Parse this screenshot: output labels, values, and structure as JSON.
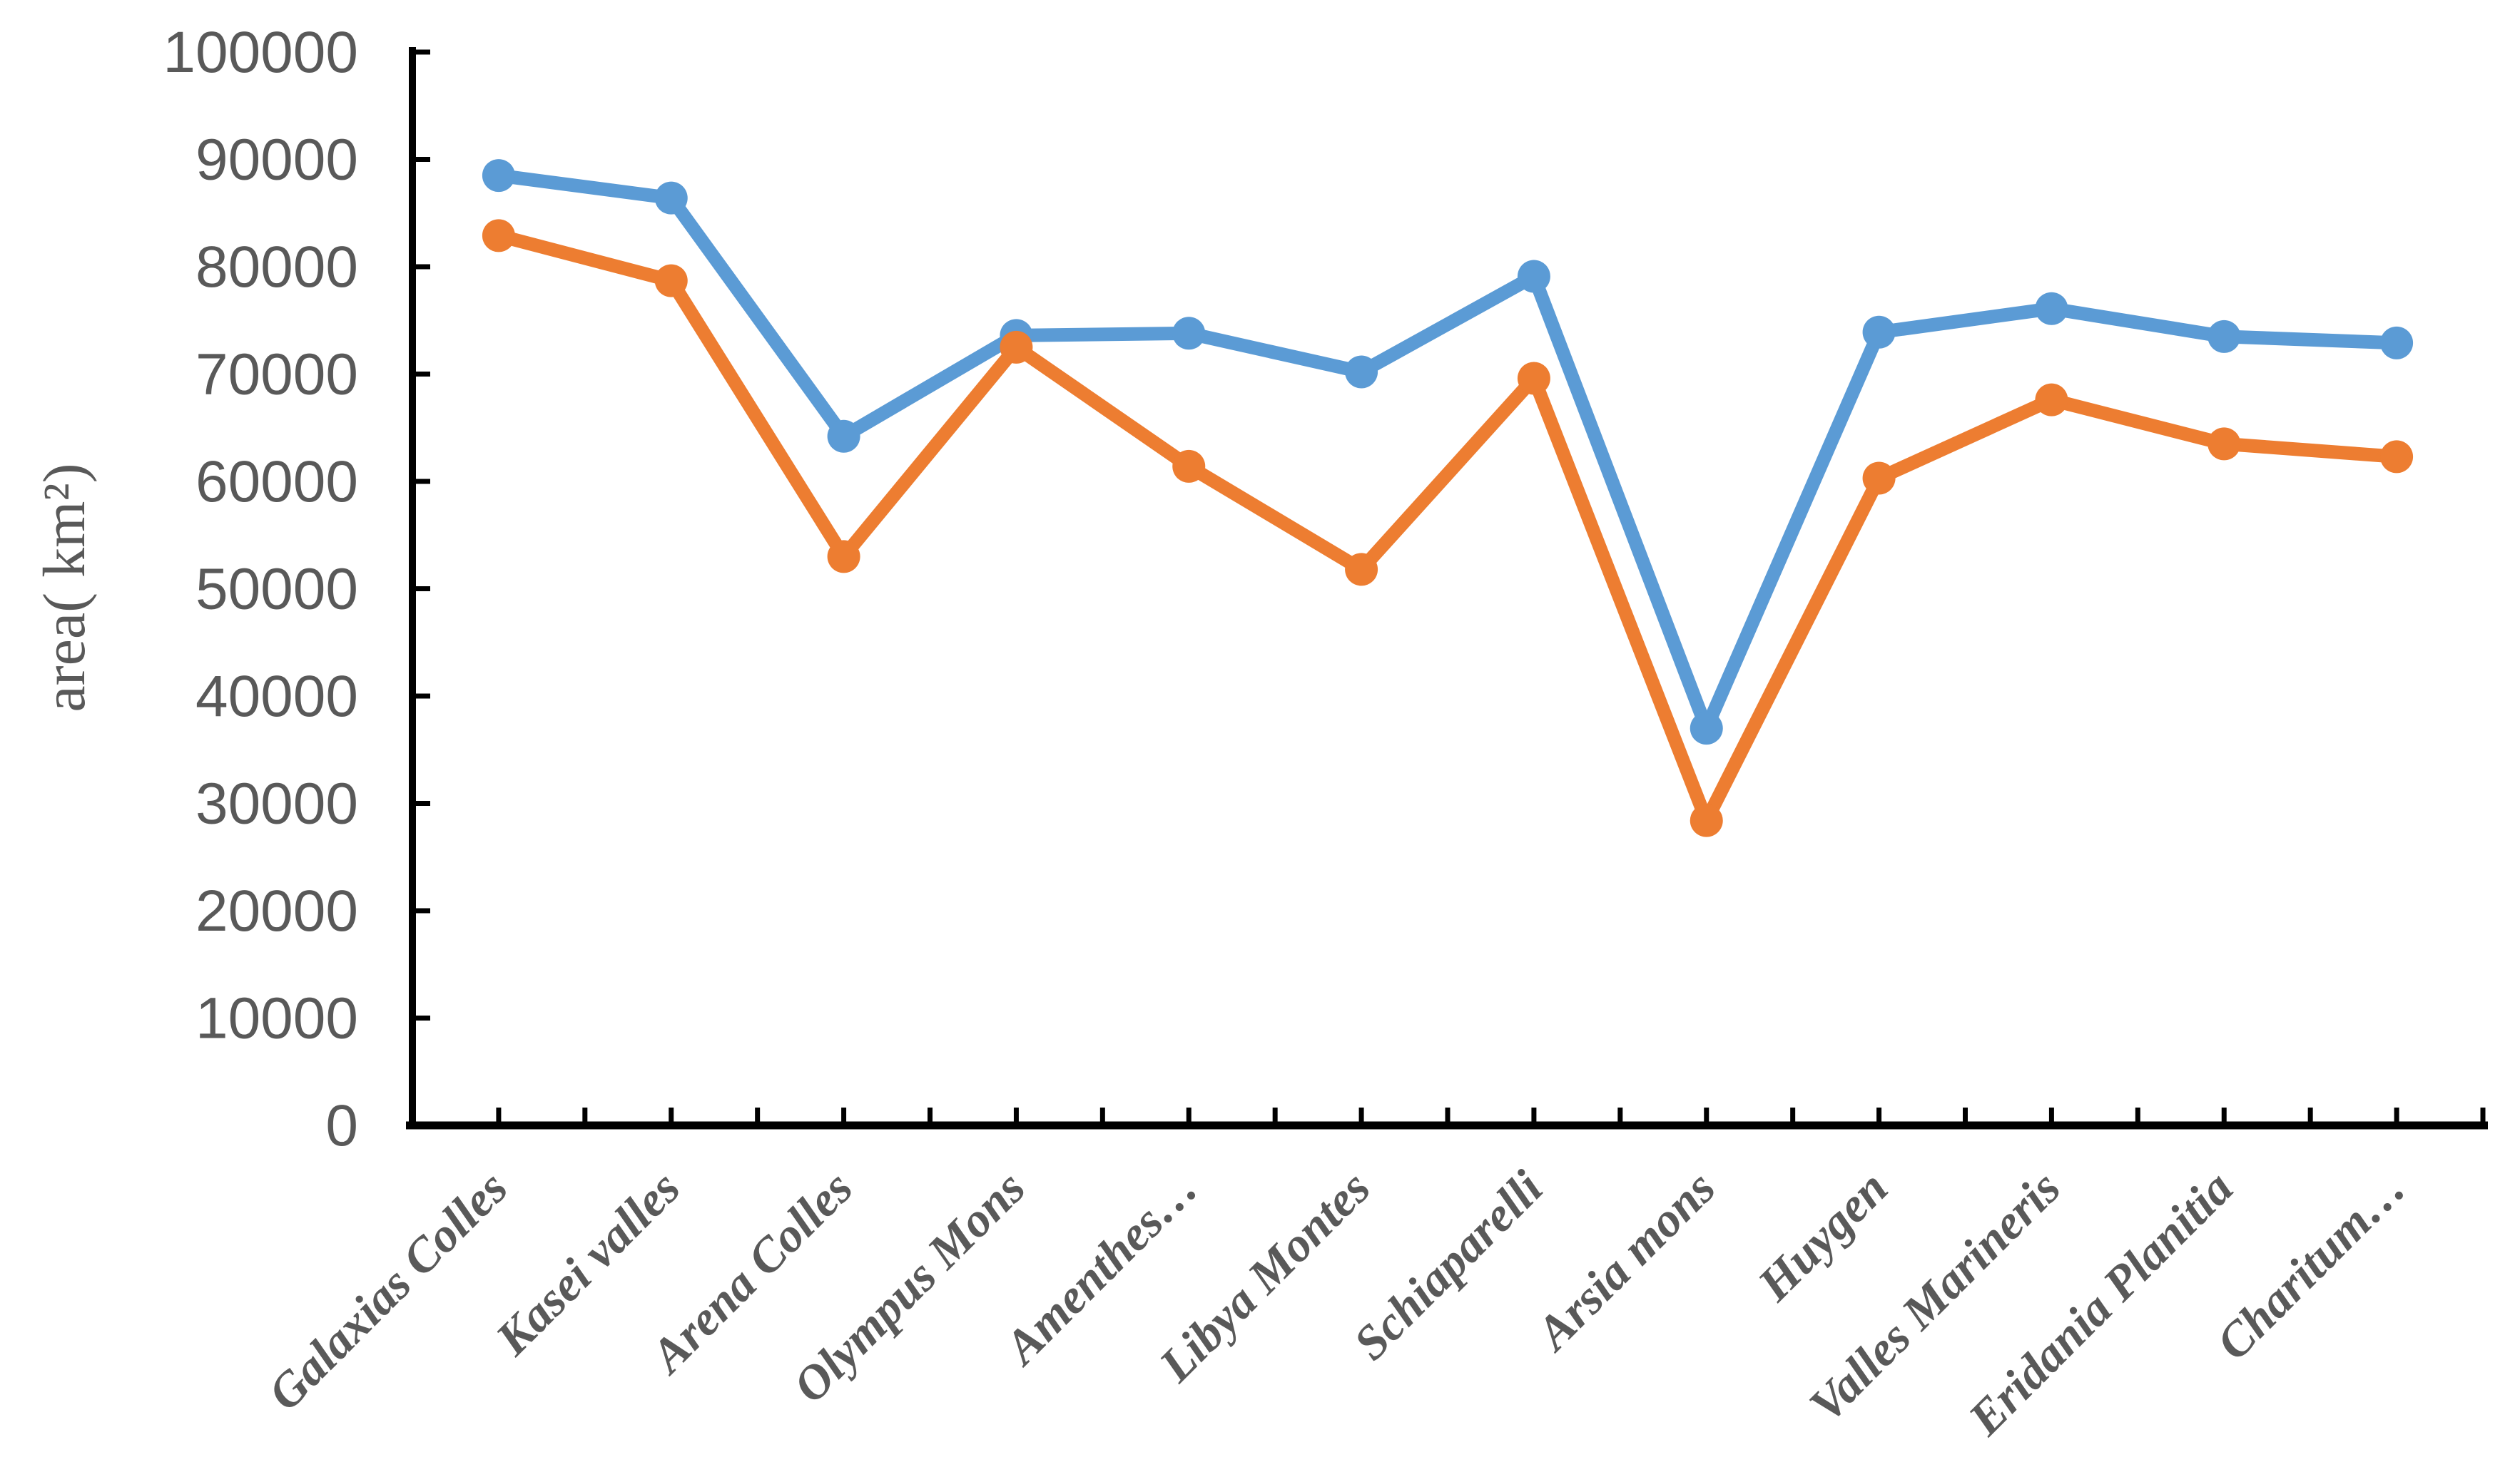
{
  "chart_data": {
    "type": "line",
    "ylabel": "area( km²)",
    "categories": [
      "Galaxias Colles",
      "Kasei valles",
      "Arena Colles",
      "Olympus Mons",
      "Amenthes…",
      "Libya Montes",
      "Schiaparelli",
      "Arsia mons",
      "Huygen",
      "Valles Marineris",
      "Eridania Planitia",
      "Charitum…"
    ],
    "series": [
      {
        "id": "series-blue",
        "color": "#5B9BD5",
        "marker": "circle",
        "values": [
          88500,
          86400,
          64200,
          73600,
          73800,
          70200,
          79100,
          37000,
          73900,
          76100,
          73500,
          72900
        ]
      },
      {
        "id": "series-orange",
        "color": "#ED7D31",
        "marker": "circle",
        "values": [
          82900,
          78700,
          53000,
          72500,
          61400,
          51800,
          69600,
          28400,
          60300,
          67600,
          63500,
          62300
        ]
      }
    ],
    "ylim": [
      0,
      100000
    ],
    "ytick_step": 10000,
    "yticks": [
      0,
      10000,
      20000,
      30000,
      40000,
      50000,
      60000,
      70000,
      80000,
      90000,
      100000
    ],
    "grid": false,
    "legend": "none",
    "axis_color": "#000000",
    "text_color": "#595959"
  }
}
